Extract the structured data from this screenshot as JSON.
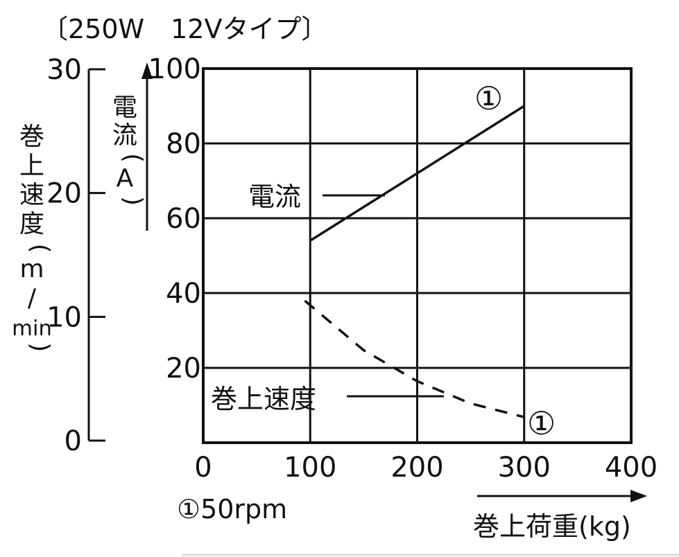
{
  "chart_data": {
    "type": "line",
    "title": "〔250W　12Vタイプ〕",
    "xlabel": "巻上荷重(kg)",
    "x_ticks": [
      0,
      100,
      200,
      300,
      400
    ],
    "xlim": [
      0,
      400
    ],
    "y_current": {
      "label_chars": [
        "電",
        "流",
        "(",
        "A",
        ")"
      ],
      "ticks": [
        20,
        40,
        60,
        80,
        100
      ],
      "ylim": [
        0,
        100
      ]
    },
    "y_speed": {
      "label_chars": [
        "巻",
        "上",
        "速",
        "度",
        "(",
        "m",
        "/",
        "min",
        ")"
      ],
      "ticks": [
        0,
        10,
        20,
        30
      ],
      "ylim": [
        0,
        30
      ]
    },
    "series": [
      {
        "name": "電流",
        "axis": "current",
        "style": "solid",
        "marker_label": "①",
        "x": [
          100,
          300
        ],
        "y": [
          54,
          90
        ]
      },
      {
        "name": "巻上速度",
        "axis": "speed",
        "style": "dashed",
        "marker_label": "①",
        "x": [
          95,
          150,
          200,
          250,
          300
        ],
        "y": [
          11.3,
          7.3,
          4.8,
          3.0,
          1.9
        ]
      }
    ],
    "footnote": "①50rpm",
    "grid": true
  }
}
